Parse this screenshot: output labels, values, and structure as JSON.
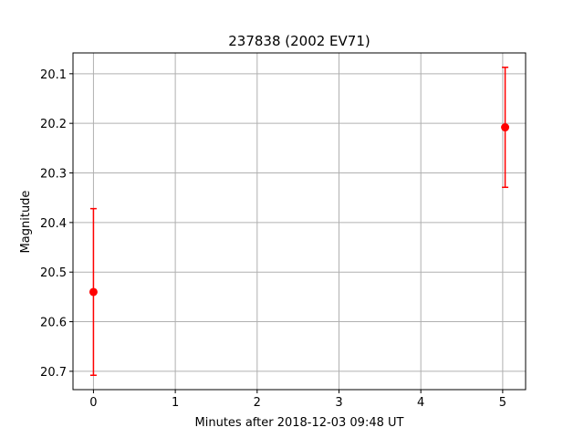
{
  "chart_data": {
    "type": "scatter",
    "title": "237838 (2002 EV71)",
    "xlabel": "Minutes after 2018-12-03 09:48 UT",
    "ylabel": "Magnitude",
    "xlim": [
      -0.25,
      5.28
    ],
    "ylim": [
      20.737,
      20.058
    ],
    "y_inverted": true,
    "grid": true,
    "xticks": [
      0,
      1,
      2,
      3,
      4,
      5
    ],
    "xtick_labels": [
      "0",
      "1",
      "2",
      "3",
      "4",
      "5"
    ],
    "yticks": [
      20.1,
      20.2,
      20.3,
      20.4,
      20.5,
      20.6,
      20.7
    ],
    "ytick_labels": [
      "20.1",
      "20.2",
      "20.3",
      "20.4",
      "20.5",
      "20.6",
      "20.7"
    ],
    "series": [
      {
        "color": "#ff0000",
        "points": [
          {
            "x": 0.0,
            "y": 20.54,
            "yerr": 0.168
          },
          {
            "x": 5.03,
            "y": 20.208,
            "yerr": 0.121
          }
        ]
      }
    ]
  }
}
